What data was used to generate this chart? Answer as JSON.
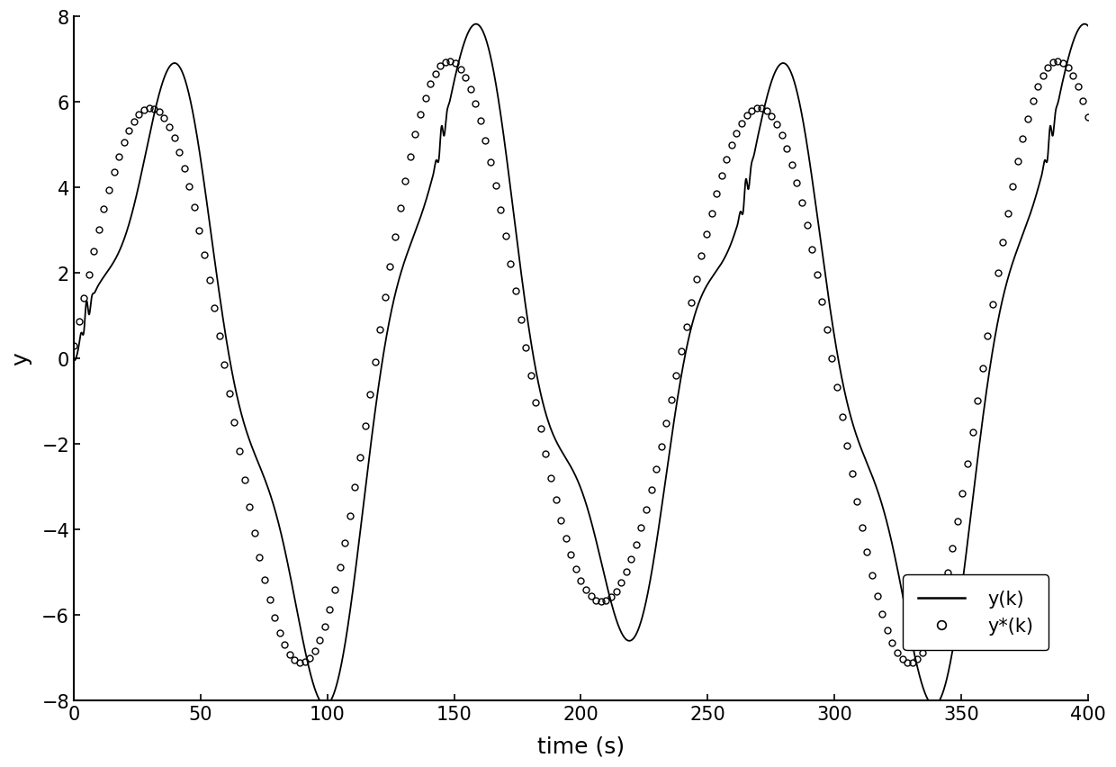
{
  "xlabel": "time (s)",
  "ylabel": "y",
  "xlim": [
    0,
    400
  ],
  "ylim": [
    -8,
    8
  ],
  "xticks": [
    0,
    50,
    100,
    150,
    200,
    250,
    300,
    350,
    400
  ],
  "yticks": [
    -8,
    -6,
    -4,
    -2,
    0,
    2,
    4,
    6,
    8
  ],
  "legend_labels": [
    "y(k)",
    "y*(k)"
  ],
  "line_color": "#000000",
  "marker_color": "#000000",
  "background_color": "#ffffff",
  "figsize": [
    12.4,
    8.53
  ],
  "dpi": 100
}
